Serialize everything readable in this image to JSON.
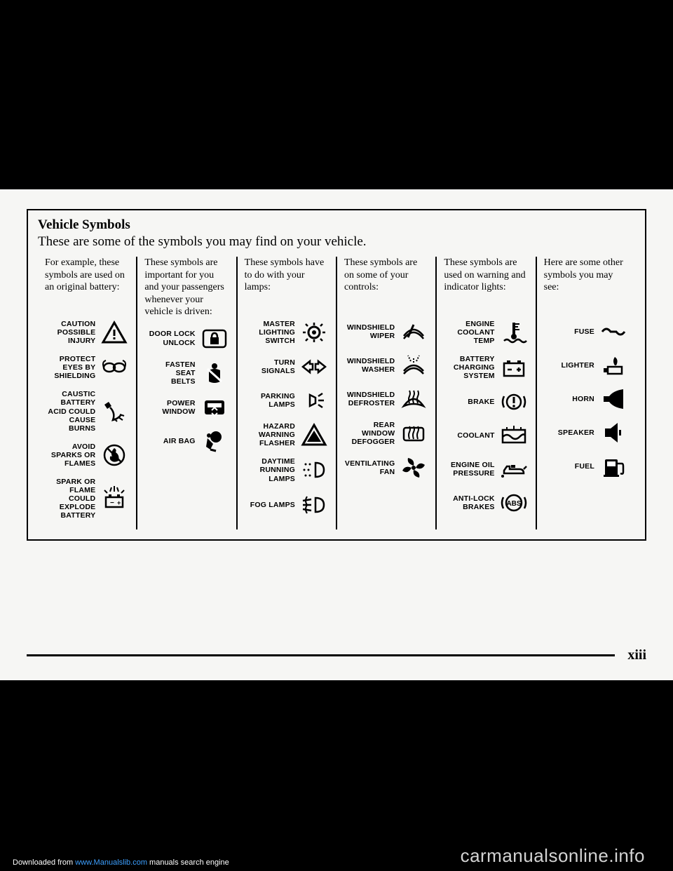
{
  "title": "Vehicle Symbols",
  "subtitle": "These are some of the symbols you may find on your vehicle.",
  "pageNumber": "xiii",
  "watermark": "carmanualsonline.info",
  "download_prefix": "Downloaded from ",
  "download_link": "www.Manualslib.com",
  "download_suffix": " manuals search engine",
  "columns": [
    {
      "heading": "For example, these symbols are used on an original battery:",
      "items": [
        {
          "label": "CAUTION\nPOSSIBLE\nINJURY",
          "icon": "warning-triangle"
        },
        {
          "label": "PROTECT\nEYES BY\nSHIELDING",
          "icon": "goggles"
        },
        {
          "label": "CAUSTIC\nBATTERY\nACID COULD\nCAUSE\nBURNS",
          "icon": "acid-hand"
        },
        {
          "label": "AVOID\nSPARKS OR\nFLAMES",
          "icon": "no-flame"
        },
        {
          "label": "SPARK OR\nFLAME\nCOULD\nEXPLODE\nBATTERY",
          "icon": "battery-explode"
        }
      ]
    },
    {
      "heading": "These symbols are important for you and your passengers whenever your vehicle is driven:",
      "items": [
        {
          "label": "DOOR LOCK\nUNLOCK",
          "icon": "door-lock"
        },
        {
          "label": "FASTEN\nSEAT\nBELTS",
          "icon": "seatbelt"
        },
        {
          "label": "POWER\nWINDOW",
          "icon": "power-window"
        },
        {
          "label": "AIR BAG",
          "icon": "airbag"
        }
      ]
    },
    {
      "heading": "These symbols have to do with your lamps:",
      "items": [
        {
          "label": "MASTER\nLIGHTING\nSWITCH",
          "icon": "master-light"
        },
        {
          "label": "TURN\nSIGNALS",
          "icon": "turn-signals"
        },
        {
          "label": "PARKING\nLAMPS",
          "icon": "parking-lamps"
        },
        {
          "label": "HAZARD\nWARNING\nFLASHER",
          "icon": "hazard"
        },
        {
          "label": "DAYTIME\nRUNNING\nLAMPS",
          "icon": "drl"
        },
        {
          "label": "FOG LAMPS",
          "icon": "fog-lamps"
        }
      ]
    },
    {
      "heading": "These symbols are on some of your controls:",
      "items": [
        {
          "label": "WINDSHIELD\nWIPER",
          "icon": "wiper"
        },
        {
          "label": "WINDSHIELD\nWASHER",
          "icon": "washer"
        },
        {
          "label": "WINDSHIELD\nDEFROSTER",
          "icon": "defroster-front"
        },
        {
          "label": "REAR\nWINDOW\nDEFOGGER",
          "icon": "defogger-rear"
        },
        {
          "label": "VENTILATING\nFAN",
          "icon": "fan"
        }
      ]
    },
    {
      "heading": "These symbols are used on warning and indicator lights:",
      "items": [
        {
          "label": "ENGINE\nCOOLANT\nTEMP",
          "icon": "coolant-temp"
        },
        {
          "label": "BATTERY\nCHARGING\nSYSTEM",
          "icon": "battery"
        },
        {
          "label": "BRAKE",
          "icon": "brake"
        },
        {
          "label": "COOLANT",
          "icon": "coolant"
        },
        {
          "label": "ENGINE OIL\nPRESSURE",
          "icon": "oil"
        },
        {
          "label": "ANTI-LOCK\nBRAKES",
          "icon": "abs"
        }
      ]
    },
    {
      "heading": "Here are some other symbols you may see:",
      "items": [
        {
          "label": "FUSE",
          "icon": "fuse"
        },
        {
          "label": "LIGHTER",
          "icon": "lighter"
        },
        {
          "label": "HORN",
          "icon": "horn"
        },
        {
          "label": "SPEAKER",
          "icon": "speaker"
        },
        {
          "label": "FUEL",
          "icon": "fuel"
        }
      ]
    }
  ]
}
